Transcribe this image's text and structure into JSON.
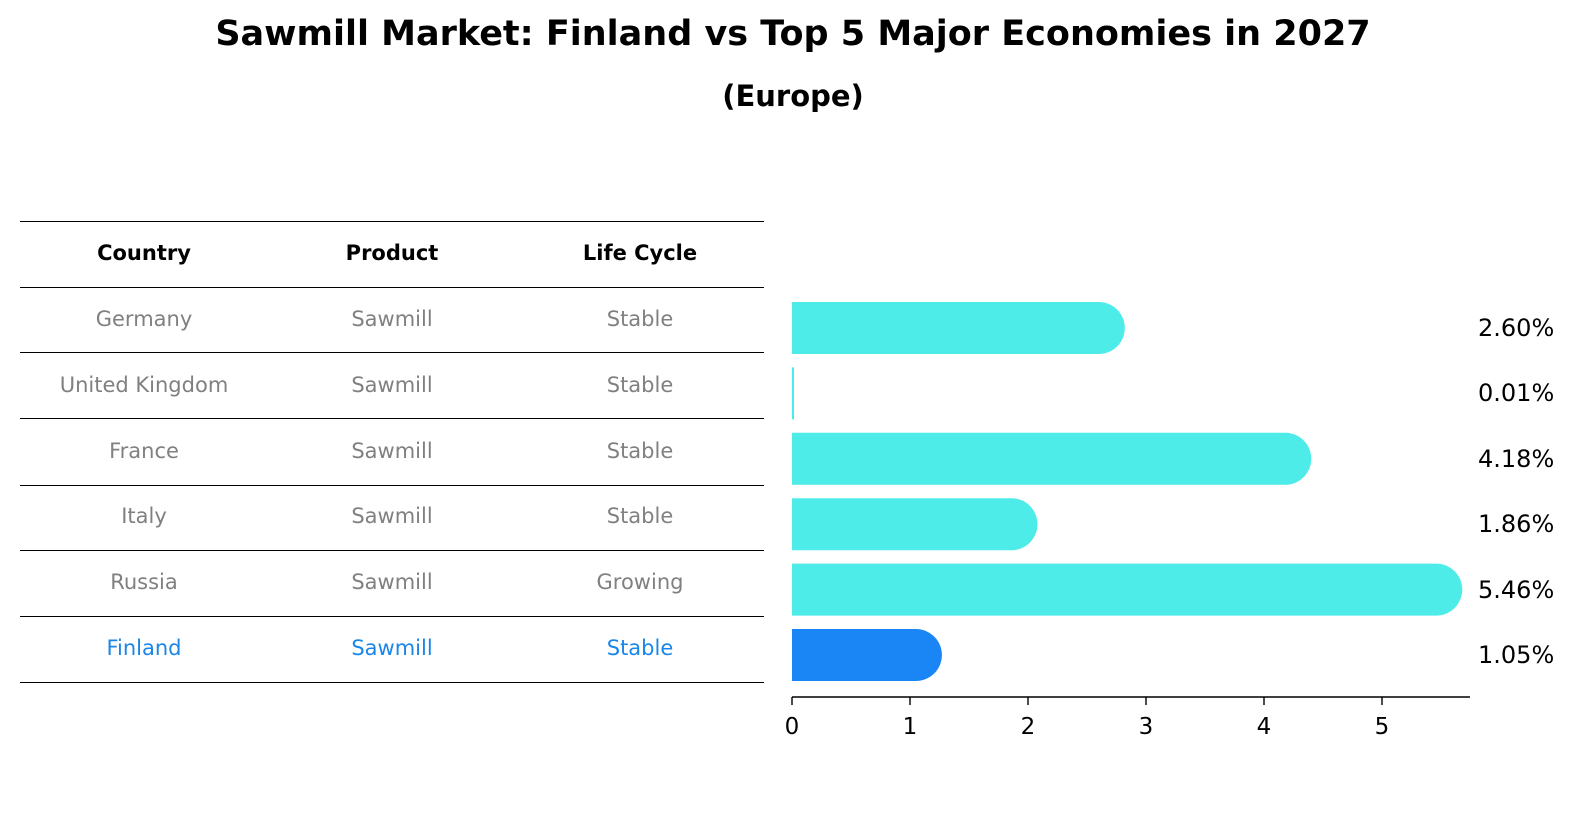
{
  "title": "Sawmill Market: Finland vs Top 5 Major Economies in 2027",
  "subtitle": "(Europe)",
  "table": {
    "headers": [
      "Country",
      "Product",
      "Life Cycle"
    ],
    "rows": [
      [
        "Germany",
        "Sawmill",
        "Stable"
      ],
      [
        "United Kingdom",
        "Sawmill",
        "Stable"
      ],
      [
        "France",
        "Sawmill",
        "Stable"
      ],
      [
        "Italy",
        "Sawmill",
        "Stable"
      ],
      [
        "Russia",
        "Sawmill",
        "Growing"
      ],
      [
        "Finland",
        "Sawmill",
        "Stable"
      ]
    ]
  },
  "chart_data": {
    "type": "bar",
    "orientation": "horizontal",
    "categories": [
      "Germany",
      "United Kingdom",
      "France",
      "Italy",
      "Russia",
      "Finland"
    ],
    "values": [
      2.6,
      0.01,
      4.18,
      1.86,
      5.46,
      1.05
    ],
    "value_labels": [
      "2.60%",
      "0.01%",
      "4.18%",
      "1.86%",
      "5.46%",
      "1.05%"
    ],
    "xticks": [
      "0",
      "1",
      "2",
      "3",
      "4",
      "5"
    ],
    "xlim": [
      0,
      5.75
    ],
    "highlight": "Finland",
    "colors": {
      "bar": "#4eece9",
      "highlight": "#1a86f5",
      "highlight_text": "#1a86e8",
      "muted_text": "#808080"
    }
  }
}
